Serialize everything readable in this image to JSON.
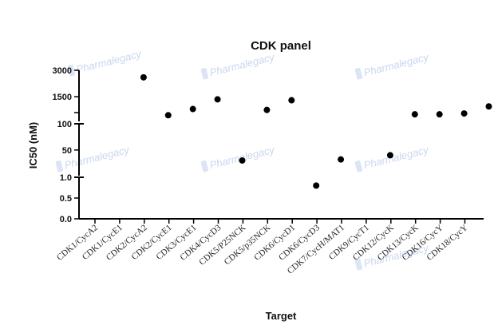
{
  "chart_data": {
    "type": "scatter",
    "title": "CDK panel",
    "xlabel": "Target",
    "ylabel": "IC50 (nM)",
    "categories": [
      "CDK1/CycA2",
      "CDK1/CycE1",
      "CDK2/CycA2",
      "CDK2/CycE1",
      "CDK3/CycE1",
      "CDK4/CycD3",
      "CDK5/P25NCK",
      "CDK5/p35NCK",
      "CDK6/CycD1",
      "CDK6/CycD3",
      "CDK7/CycH/MAT1",
      "CDK9/CycT1",
      "CDK12/CycK",
      "CDK13/CycK",
      "CDK16/CycY",
      "CDK18/CycY"
    ],
    "values": [
      null,
      2600,
      450,
      800,
      1350,
      30,
      750,
      1300,
      0.8,
      32,
      null,
      40,
      500,
      500,
      550,
      950
    ],
    "y_axis": {
      "scale": "segmented",
      "segments": [
        {
          "range": [
            0,
            1.0
          ],
          "ticks": [
            0.0,
            0.5,
            1.0
          ],
          "tick_labels": [
            "0.0",
            "0.5",
            "1.0"
          ]
        },
        {
          "range": [
            1.0,
            100
          ],
          "ticks": [
            50,
            100
          ],
          "tick_labels": [
            "50",
            "100"
          ]
        },
        {
          "range": [
            100,
            3000
          ],
          "ticks": [
            1500,
            3000
          ],
          "tick_labels": [
            "1500",
            "3000"
          ]
        }
      ]
    },
    "grid": false,
    "legend": "none",
    "marker_color": "#000000",
    "watermark": "Pharmalegacy"
  }
}
